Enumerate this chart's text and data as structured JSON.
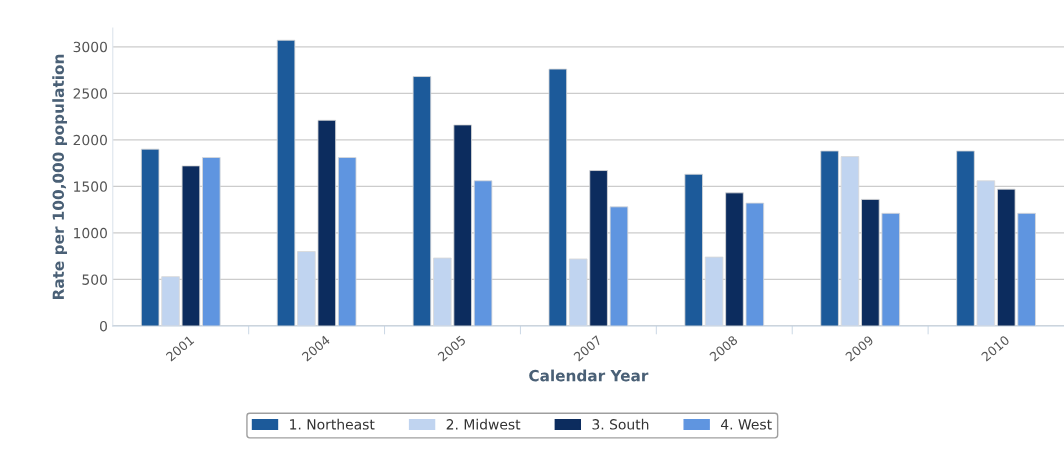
{
  "chart_data": {
    "type": "bar",
    "xlabel": "Calendar Year",
    "ylabel": "Rate per 100,000 population",
    "categories": [
      "2001",
      "2004",
      "2005",
      "2007",
      "2008",
      "2009",
      "2010"
    ],
    "series": [
      {
        "name": "1. Northeast",
        "color": "#1c5a9a",
        "values": [
          1900,
          3070,
          2680,
          2760,
          1630,
          1880,
          1880
        ]
      },
      {
        "name": "2. Midwest",
        "color": "#c0d4f0",
        "values": [
          530,
          800,
          730,
          720,
          740,
          1820,
          1560
        ]
      },
      {
        "name": "3. South",
        "color": "#0c2c5e",
        "values": [
          1720,
          2210,
          2160,
          1670,
          1430,
          1360,
          1470
        ]
      },
      {
        "name": "4. West",
        "color": "#5f95e0",
        "values": [
          1810,
          1810,
          1560,
          1280,
          1320,
          1210,
          1210
        ]
      }
    ],
    "ylim": [
      0,
      3200
    ],
    "yticks": [
      0,
      500,
      1000,
      1500,
      2000,
      2500,
      3000
    ],
    "grid": "y",
    "legend": "bottom"
  }
}
